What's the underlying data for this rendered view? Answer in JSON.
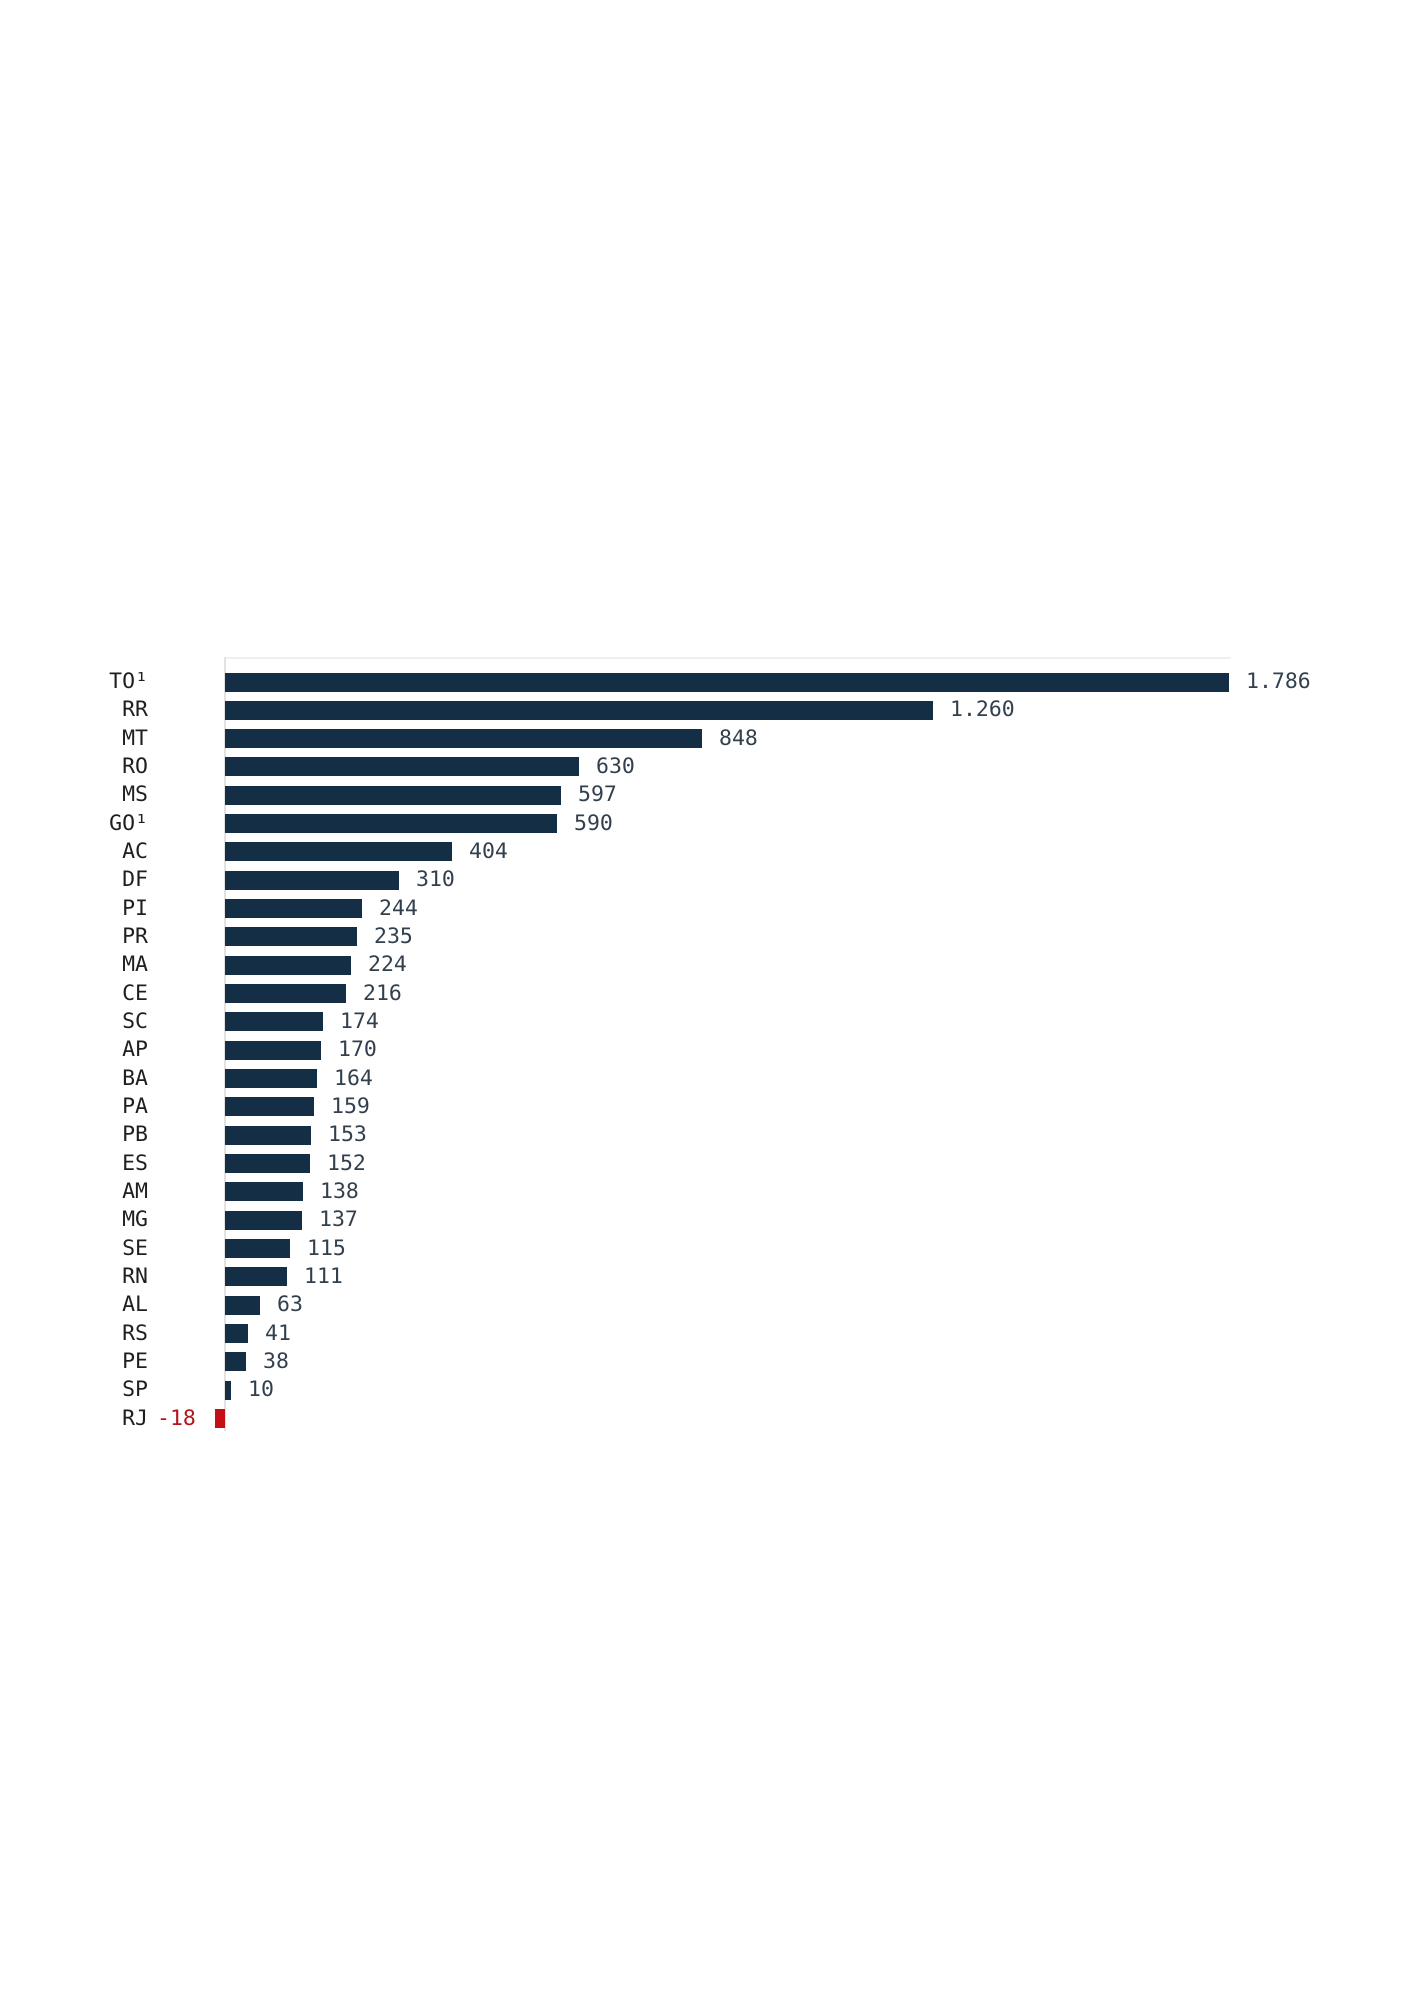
{
  "chart_data": {
    "type": "bar",
    "orientation": "horizontal",
    "title": "",
    "xlabel": "",
    "ylabel": "",
    "categories": [
      "TO¹",
      "RR",
      "MT",
      "RO",
      "MS",
      "GO¹",
      "AC",
      "DF",
      "PI",
      "PR",
      "MA",
      "CE",
      "SC",
      "AP",
      "BA",
      "PA",
      "PB",
      "ES",
      "AM",
      "MG",
      "SE",
      "RN",
      "AL",
      "RS",
      "PE",
      "SP",
      "RJ"
    ],
    "values": [
      1786,
      1260,
      848,
      630,
      597,
      590,
      404,
      310,
      244,
      235,
      224,
      216,
      174,
      170,
      164,
      159,
      153,
      152,
      138,
      137,
      115,
      111,
      63,
      41,
      38,
      10,
      -18
    ],
    "value_labels": [
      "1.786",
      "1.260",
      "848",
      "630",
      "597",
      "590",
      "404",
      "310",
      "244",
      "235",
      "224",
      "216",
      "174",
      "170",
      "164",
      "159",
      "153",
      "152",
      "138",
      "137",
      "115",
      "111",
      "63",
      "41",
      "38",
      "10",
      "-18"
    ],
    "xlim": [
      -18,
      1786
    ],
    "grid": false,
    "zero_axis_line": true,
    "colors": {
      "bar": "#142e45",
      "negative_bar": "#c40f16",
      "category_label": "#1f1f1f",
      "value_label": "#32404e",
      "negative_value_label": "#b5121b",
      "axis_line": "#e2e2e2",
      "background": "#ffffff"
    }
  }
}
